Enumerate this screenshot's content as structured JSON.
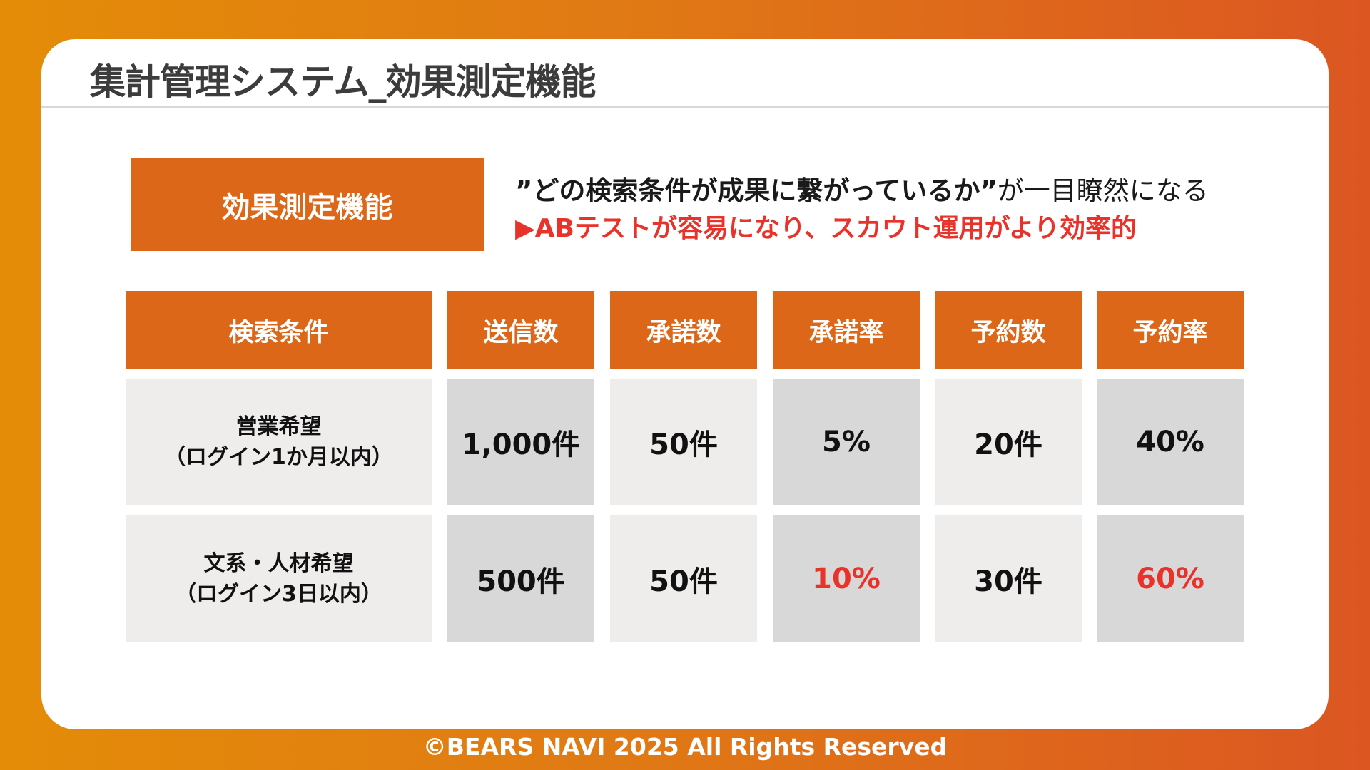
{
  "header": {
    "title": "集計管理システム_効果測定機能"
  },
  "feature": {
    "label": "効果測定機能",
    "tagline_quote": "”どの検索条件が成果に繋がっているか”",
    "tagline_suffix": "が一目瞭然になる",
    "tagline_highlight": "▶ABテストが容易になり、スカウト運用がより効率的"
  },
  "table": {
    "headers": [
      "検索条件",
      "送信数",
      "承諾数",
      "承諾率",
      "予約数",
      "予約率"
    ],
    "rows": [
      {
        "condition_line1": "営業希望",
        "condition_line2": "（ログイン1か月以内）",
        "sent": "1,000件",
        "accepted": "50件",
        "accept_rate": "5%",
        "reservations": "20件",
        "reservation_rate": "40%"
      },
      {
        "condition_line1": "文系・人材希望",
        "condition_line2": "（ログイン3日以内）",
        "sent": "500件",
        "accepted": "50件",
        "accept_rate": "10%",
        "reservations": "30件",
        "reservation_rate": "60%"
      }
    ]
  },
  "colors": {
    "accent_orange": "#DC6718",
    "highlight_red": "#E8322A",
    "background_gradient_start": "#E48C08",
    "background_gradient_end": "#DC5622"
  },
  "footer": {
    "copyright": "©BEARS NAVI 2025 All Rights Reserved"
  }
}
